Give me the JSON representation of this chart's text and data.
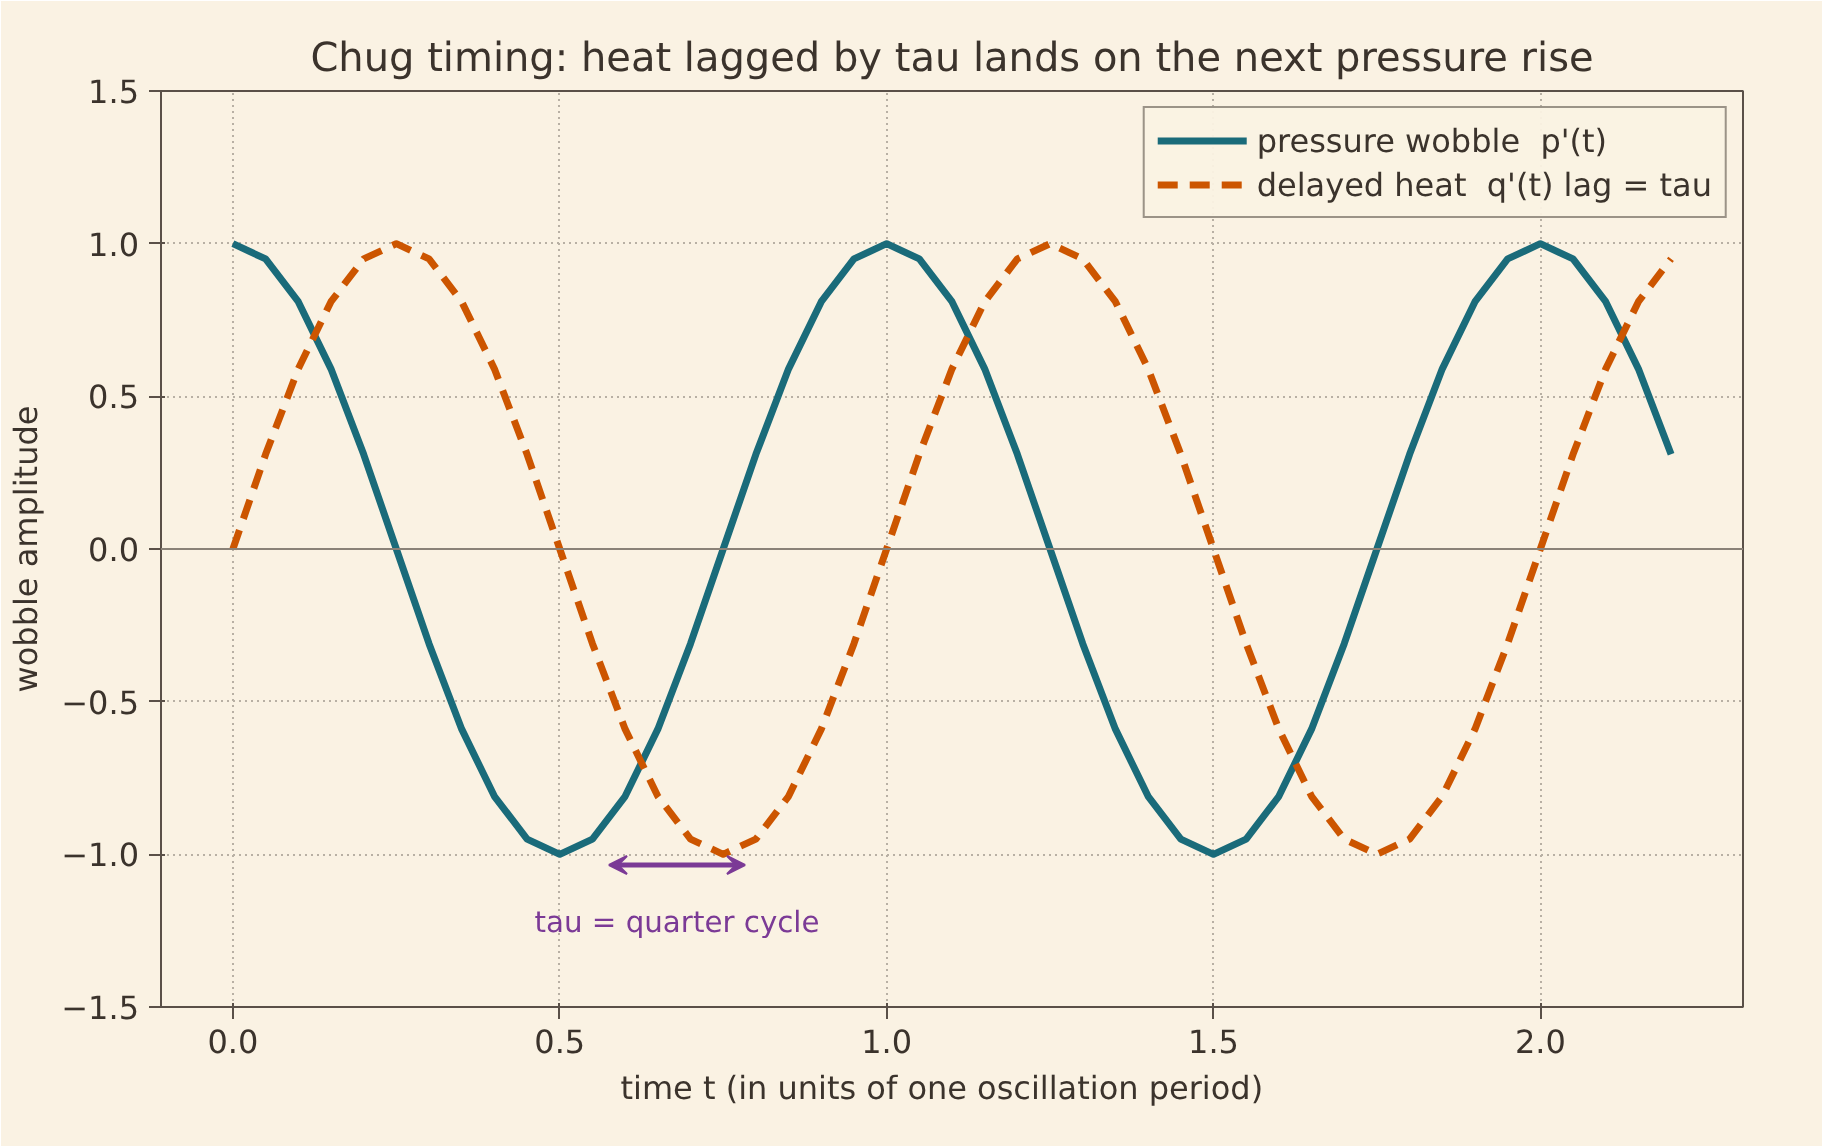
{
  "chart_data": {
    "type": "line",
    "title": "Chug timing: heat lagged by tau lands on the next pressure rise",
    "xlabel": "time  t  (in units of one oscillation period)",
    "ylabel": "wobble amplitude",
    "x": [
      0,
      0.05,
      0.1,
      0.15,
      0.2,
      0.25,
      0.3,
      0.35,
      0.4,
      0.45,
      0.5,
      0.55,
      0.6,
      0.65,
      0.7,
      0.75,
      0.8,
      0.85,
      0.9,
      0.95,
      1,
      1.05,
      1.1,
      1.15,
      1.2,
      1.25,
      1.3,
      1.35,
      1.4,
      1.45,
      1.5,
      1.55,
      1.6,
      1.65,
      1.7,
      1.75,
      1.8,
      1.85,
      1.9,
      1.95,
      2,
      2.05,
      2.1,
      2.15,
      2.2
    ],
    "series": [
      {
        "name": "pressure wobble  p'(t)",
        "color": "#1a6b7a",
        "line_style": "solid",
        "values": [
          1,
          0.95,
          0.81,
          0.59,
          0.31,
          0,
          -0.31,
          -0.59,
          -0.81,
          -0.95,
          -1,
          -0.95,
          -0.81,
          -0.59,
          -0.31,
          0,
          0.31,
          0.59,
          0.81,
          0.95,
          1,
          0.95,
          0.81,
          0.59,
          0.31,
          0,
          -0.31,
          -0.59,
          -0.81,
          -0.95,
          -1,
          -0.95,
          -0.81,
          -0.59,
          -0.31,
          0,
          0.31,
          0.59,
          0.81,
          0.95,
          1,
          0.95,
          0.81,
          0.59,
          0.31
        ]
      },
      {
        "name": "delayed heat  q'(t) lag = tau",
        "color": "#cc5500",
        "line_style": "dashed",
        "values": [
          0,
          0.31,
          0.59,
          0.81,
          0.95,
          1,
          0.95,
          0.81,
          0.59,
          0.31,
          0,
          -0.31,
          -0.59,
          -0.81,
          -0.95,
          -1,
          -0.95,
          -0.81,
          -0.59,
          -0.31,
          0,
          0.31,
          0.59,
          0.81,
          0.95,
          1,
          0.95,
          0.81,
          0.59,
          0.31,
          0,
          -0.31,
          -0.59,
          -0.81,
          -0.95,
          -1,
          -0.95,
          -0.81,
          -0.59,
          -0.31,
          0,
          0.31,
          0.59,
          0.81,
          0.95
        ]
      }
    ],
    "xlim": [
      -0.11,
      2.31
    ],
    "ylim": [
      -1.5,
      1.5
    ],
    "xticks": [
      {
        "value": 0,
        "label": "0.0"
      },
      0.5,
      {
        "value": 1,
        "label": "1.0"
      },
      1.5,
      {
        "value": 2,
        "label": "2.0"
      }
    ],
    "yticks": [
      {
        "value": -1.5,
        "label": "−1.5"
      },
      {
        "value": -1,
        "label": "−1.0"
      },
      {
        "value": -0.5,
        "label": "−0.5"
      },
      {
        "value": 0,
        "label": "0.0"
      },
      0.5,
      {
        "value": 1,
        "label": "1.0"
      },
      1.5
    ],
    "ref_lines": [
      {
        "axis": "y",
        "value": 0,
        "color": "#8a8278"
      }
    ],
    "annotations": [
      "tau = quarter cycle"
    ],
    "grid": true,
    "legend": "top right",
    "marker": "none"
  }
}
